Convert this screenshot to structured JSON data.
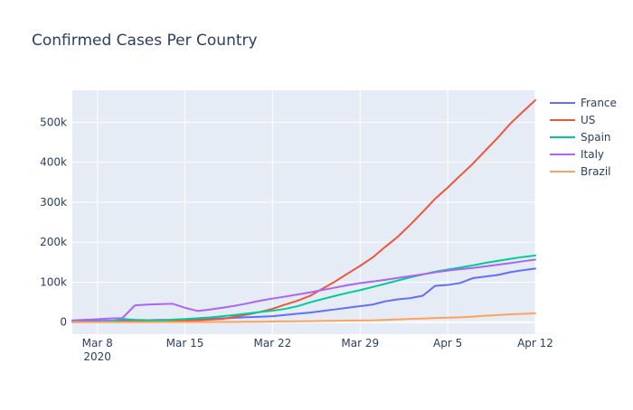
{
  "chart_data": {
    "type": "line",
    "title": "Confirmed Cases Per Country",
    "xlabel": "",
    "ylabel": "",
    "x_axis": {
      "type": "date",
      "range": [
        "2020-03-06",
        "2020-04-12"
      ],
      "ticks": [
        {
          "date": "2020-03-08",
          "label": "Mar 8",
          "sublabel": "2020"
        },
        {
          "date": "2020-03-15",
          "label": "Mar 15"
        },
        {
          "date": "2020-03-22",
          "label": "Mar 22"
        },
        {
          "date": "2020-03-29",
          "label": "Mar 29"
        },
        {
          "date": "2020-04-05",
          "label": "Apr 5"
        },
        {
          "date": "2020-04-12",
          "label": "Apr 12"
        }
      ]
    },
    "y_axis": {
      "range": [
        -30000,
        580000
      ],
      "ticks": [
        {
          "value": 0,
          "label": "0"
        },
        {
          "value": 100000,
          "label": "100k"
        },
        {
          "value": 200000,
          "label": "200k"
        },
        {
          "value": 300000,
          "label": "300k"
        },
        {
          "value": 400000,
          "label": "400k"
        },
        {
          "value": 500000,
          "label": "500k"
        }
      ]
    },
    "grid": true,
    "legend_position": "right",
    "background_color": "#E5ECF6",
    "dates": [
      "2020-03-06",
      "2020-03-07",
      "2020-03-08",
      "2020-03-09",
      "2020-03-10",
      "2020-03-11",
      "2020-03-12",
      "2020-03-13",
      "2020-03-14",
      "2020-03-15",
      "2020-03-16",
      "2020-03-17",
      "2020-03-18",
      "2020-03-19",
      "2020-03-20",
      "2020-03-21",
      "2020-03-22",
      "2020-03-23",
      "2020-03-24",
      "2020-03-25",
      "2020-03-26",
      "2020-03-27",
      "2020-03-28",
      "2020-03-29",
      "2020-03-30",
      "2020-03-31",
      "2020-04-01",
      "2020-04-02",
      "2020-04-03",
      "2020-04-04",
      "2020-04-05",
      "2020-04-06",
      "2020-04-07",
      "2020-04-08",
      "2020-04-09",
      "2020-04-10",
      "2020-04-11",
      "2020-04-12"
    ],
    "series": [
      {
        "name": "France",
        "color": "#636EFA",
        "values": [
          2000,
          2500,
          3000,
          3500,
          4000,
          4500,
          5000,
          5500,
          6000,
          6500,
          7500,
          8500,
          9500,
          11000,
          12500,
          13500,
          15000,
          18000,
          21000,
          24000,
          28000,
          32000,
          36000,
          40000,
          44000,
          52000,
          57000,
          60000,
          66000,
          91000,
          93000,
          98000,
          110000,
          114000,
          118000,
          125000,
          130000,
          134000
        ]
      },
      {
        "name": "US",
        "color": "#EF553B",
        "values": [
          300,
          400,
          500,
          600,
          1000,
          1300,
          1700,
          2200,
          2900,
          3500,
          4600,
          6400,
          7800,
          13700,
          19100,
          25500,
          33300,
          43800,
          53700,
          65800,
          83800,
          101700,
          121500,
          140900,
          161800,
          188200,
          213400,
          243500,
          275600,
          308800,
          336800,
          366700,
          396200,
          429100,
          461400,
          496500,
          526400,
          555300
        ]
      },
      {
        "name": "Spain",
        "color": "#00CC96",
        "values": [
          300,
          500,
          700,
          1000,
          8000,
          6000,
          5000,
          4000,
          6500,
          7800,
          9900,
          11800,
          14800,
          18100,
          21600,
          25400,
          28600,
          33100,
          39900,
          49500,
          57800,
          65700,
          73200,
          80100,
          87900,
          95900,
          104100,
          112100,
          119200,
          126200,
          131600,
          136700,
          141900,
          148200,
          153200,
          158300,
          163000,
          166800
        ]
      },
      {
        "name": "Italy",
        "color": "#AB63FA",
        "values": [
          4600,
          5900,
          7400,
          9200,
          10100,
          42000,
          44000,
          45000,
          46000,
          36000,
          28000,
          31500,
          36000,
          41000,
          47000,
          53600,
          59100,
          63900,
          69200,
          74400,
          80600,
          86500,
          92500,
          97700,
          101700,
          105800,
          110600,
          115200,
          119800,
          124600,
          128900,
          132500,
          135600,
          139400,
          143600,
          147600,
          152300,
          156400
        ]
      },
      {
        "name": "Brazil",
        "color": "#FFA15A",
        "values": [
          13,
          19,
          25,
          30,
          34,
          52,
          77,
          98,
          121,
          200,
          234,
          346,
          529,
          640,
          970,
          1178,
          1546,
          1924,
          2247,
          2554,
          2985,
          3417,
          3904,
          4256,
          4579,
          5717,
          6836,
          8044,
          9056,
          10360,
          11130,
          12056,
          13717,
          15927,
          17857,
          19638,
          20727,
          22169
        ]
      }
    ]
  }
}
